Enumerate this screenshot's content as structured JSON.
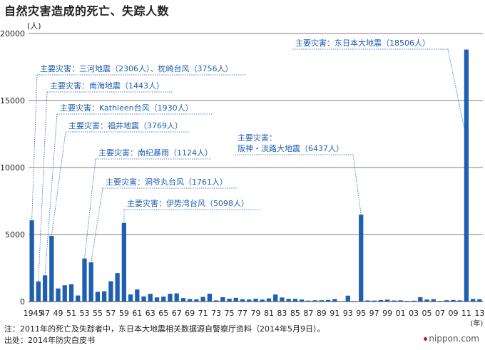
{
  "title": "自然灾害造成的死亡、失踪人数",
  "chart_data": {
    "type": "bar",
    "title": "自然灾害造成的死亡、失踪人数",
    "ylabel": "(人)",
    "xlabel": "(年)",
    "ylim": [
      0,
      20000
    ],
    "yticks": [
      0,
      5000,
      10000,
      15000,
      20000
    ],
    "color": "#1f5fb0",
    "x": [
      1945,
      1946,
      1947,
      1948,
      1949,
      1950,
      1951,
      1952,
      1953,
      1954,
      1955,
      1956,
      1957,
      1958,
      1959,
      1960,
      1961,
      1962,
      1963,
      1964,
      1965,
      1966,
      1967,
      1968,
      1969,
      1970,
      1971,
      1972,
      1973,
      1974,
      1975,
      1976,
      1977,
      1978,
      1979,
      1980,
      1981,
      1982,
      1983,
      1984,
      1985,
      1986,
      1987,
      1988,
      1989,
      1990,
      1991,
      1992,
      1993,
      1994,
      1995,
      1996,
      1997,
      1998,
      1999,
      2000,
      2001,
      2002,
      2003,
      2004,
      2005,
      2006,
      2007,
      2008,
      2009,
      2010,
      2011,
      2012,
      2013
    ],
    "values": [
      6062,
      1504,
      1950,
      4897,
      975,
      1210,
      1291,
      449,
      3212,
      2926,
      727,
      765,
      1515,
      2120,
      5868,
      528,
      902,
      381,
      575,
      307,
      367,
      578,
      607,
      259,
      183,
      163,
      350,
      587,
      85,
      324,
      213,
      273,
      174,
      153,
      208,
      148,
      232,
      524,
      301,
      199,
      199,
      148,
      69,
      93,
      96,
      123,
      190,
      19,
      438,
      39,
      6482,
      84,
      71,
      109,
      141,
      78,
      90,
      48,
      62,
      327,
      153,
      177,
      41,
      101,
      115,
      89,
      18800,
      192,
      173
    ],
    "xtick_labels": [
      "1945",
      "47",
      "49",
      "51",
      "53",
      "55",
      "57",
      "59",
      "61",
      "63",
      "65",
      "67",
      "69",
      "71",
      "73",
      "75",
      "77",
      "79",
      "81",
      "83",
      "85",
      "87",
      "89",
      "91",
      "93",
      "95",
      "97",
      "99",
      "01",
      "03",
      "05",
      "07",
      "09",
      "11",
      "13"
    ],
    "annotations": [
      {
        "text": "主要灾害：三河地震（2306人）、枕崎台风（3756人）",
        "year": 1945
      },
      {
        "text": "主要灾害：南海地震（1443人）",
        "year": 1946
      },
      {
        "text": "主要灾害：Kathleen台风（1930人）",
        "year": 1947
      },
      {
        "text": "主要灾害：福井地震（3769人）",
        "year": 1948
      },
      {
        "text": "主要灾害：南纪暴雨（1124人）",
        "year": 1953
      },
      {
        "text": "主要灾害：洞爷丸台风（1761人）",
        "year": 1954
      },
      {
        "text": "主要灾害：伊势湾台风（5098人）",
        "year": 1959
      },
      {
        "text": "主要灾害：\n阪神・淡路大地震（6437人）",
        "year": 1995
      },
      {
        "text": "主要灾害：东日本大地震（18506人）",
        "year": 2011
      }
    ]
  },
  "notes": [
    "注：2011年的死亡及失踪者中，东日本大地震相关数据源自警察厅资料（2014年5月9日）。",
    "出处：2014年防灾白皮书"
  ],
  "brand": "nippon.com"
}
